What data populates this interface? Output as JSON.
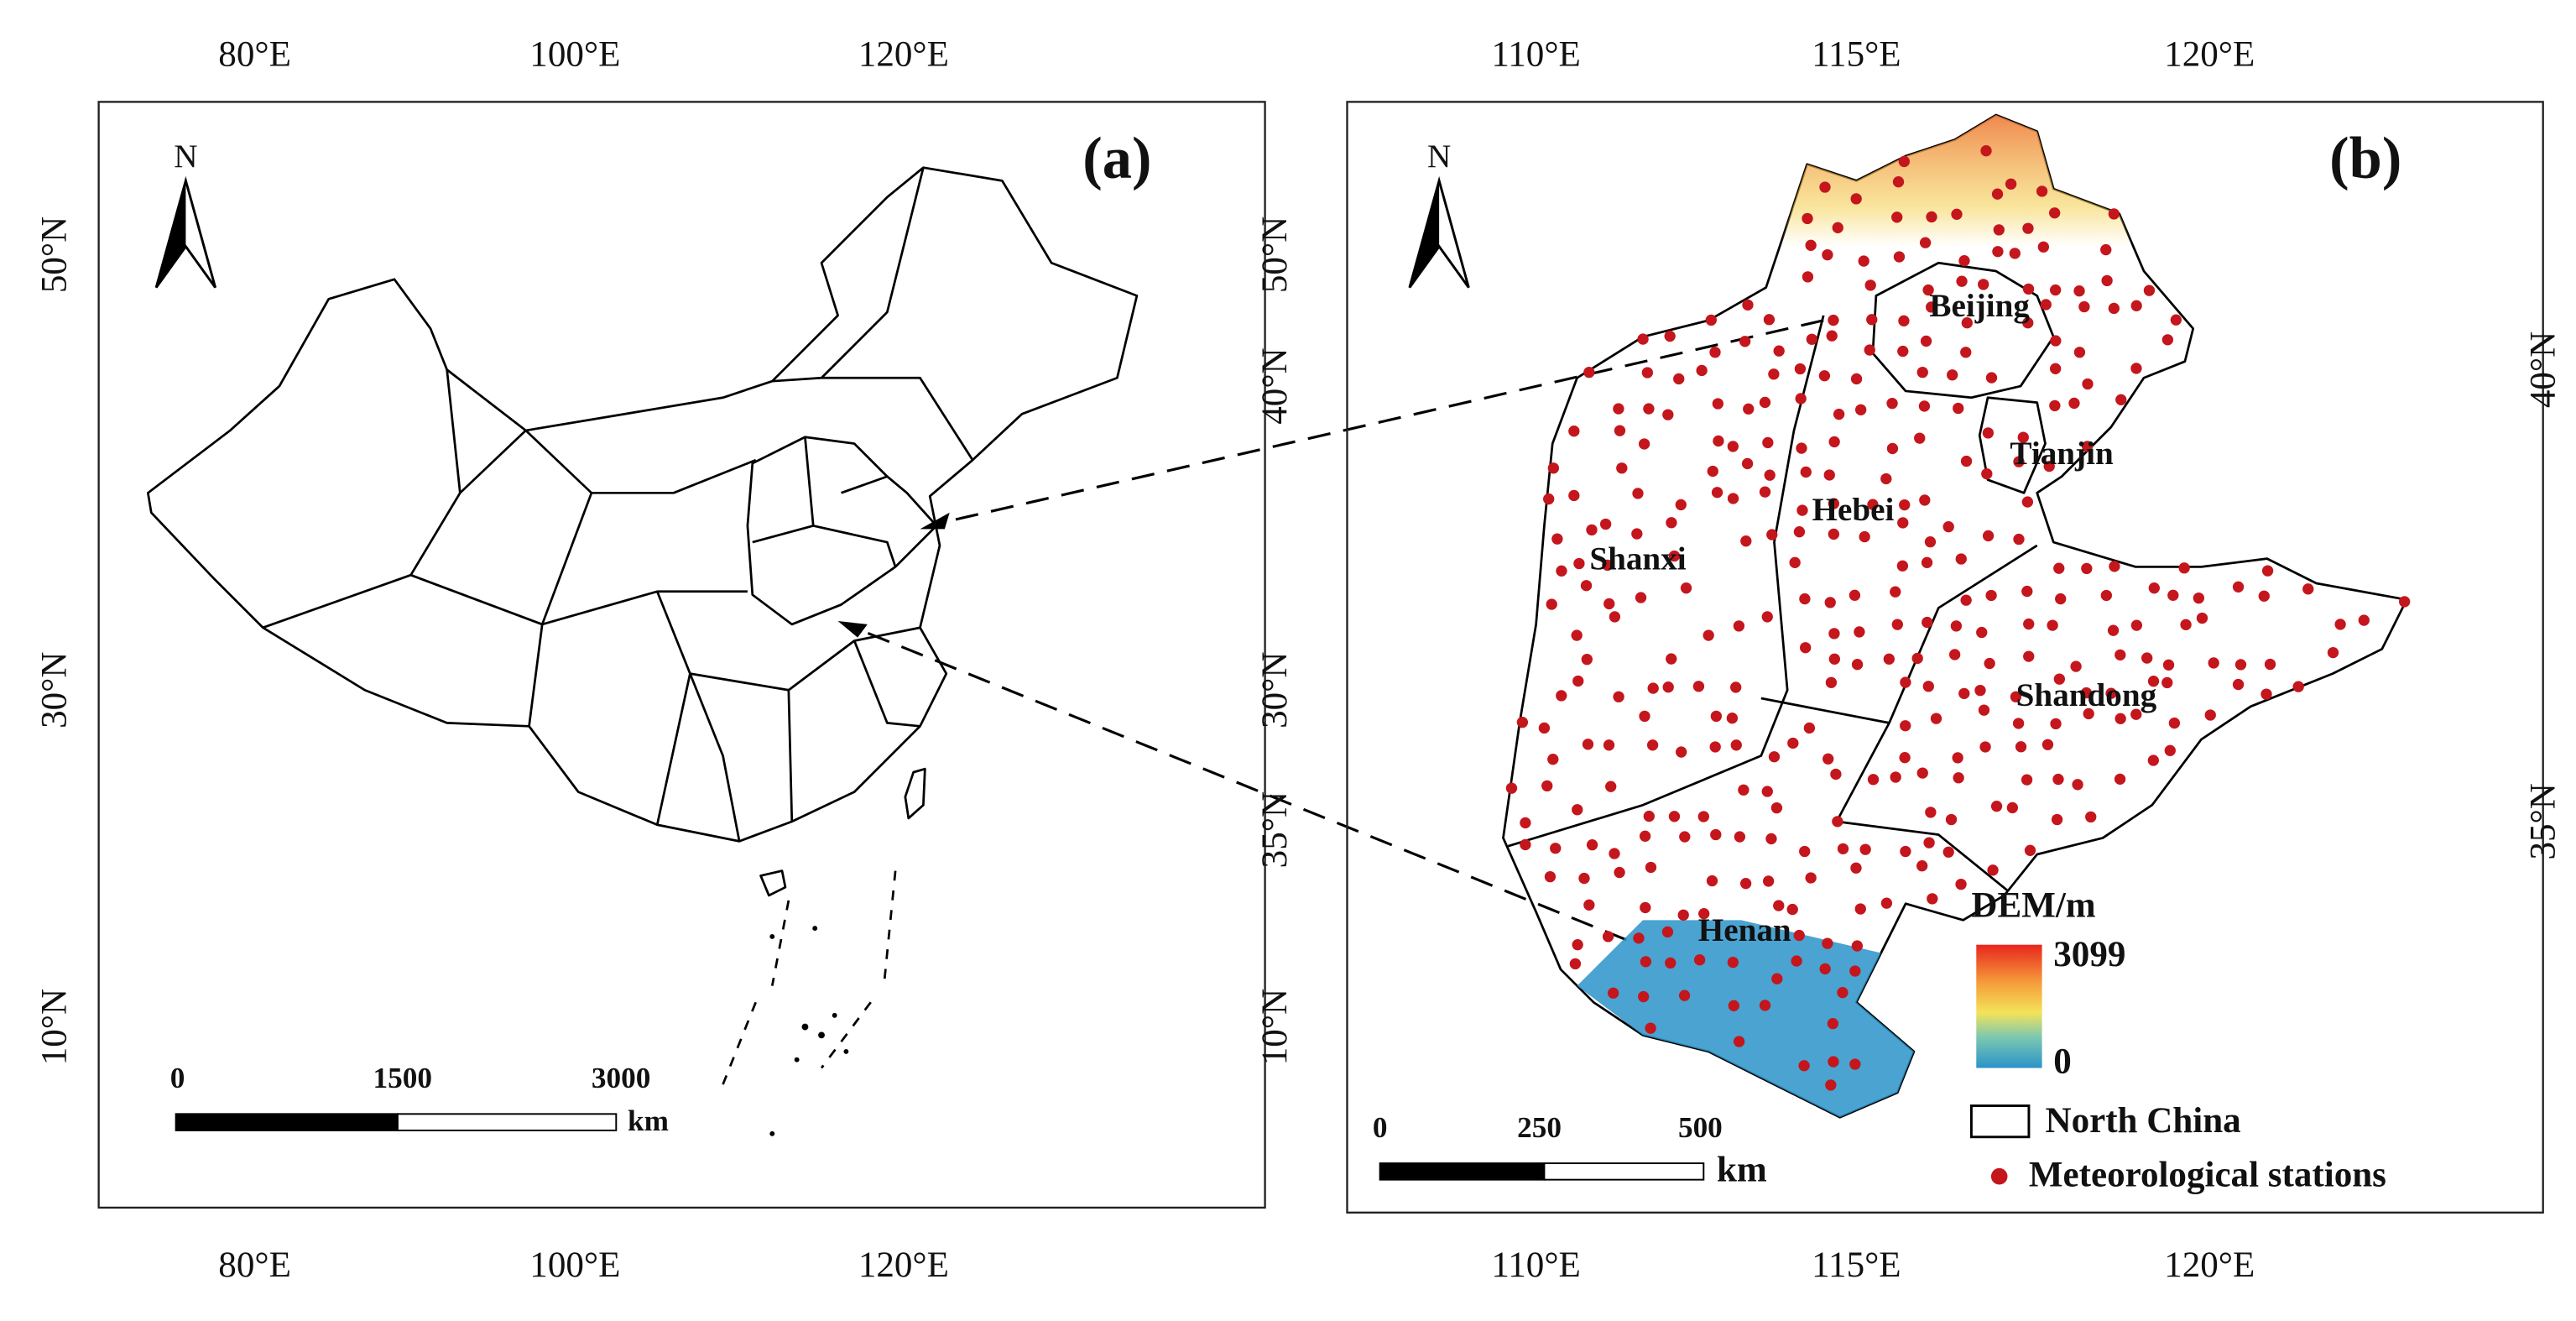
{
  "panel_a": {
    "label": "(a)",
    "north": "N",
    "x_ticks_top": [
      "80°E",
      "100°E",
      "120°E"
    ],
    "x_ticks_bottom": [
      "80°E",
      "100°E",
      "120°E"
    ],
    "y_ticks_left": [
      "50°N",
      "30°N",
      "10°N"
    ],
    "y_ticks_right": [
      "50°N",
      "30°N",
      "10°N"
    ],
    "scale_bar": {
      "labels": [
        "0",
        "1500",
        "3000"
      ],
      "unit": "km"
    }
  },
  "panel_b": {
    "label": "(b)",
    "north": "N",
    "x_ticks_top": [
      "110°E",
      "115°E",
      "120°E"
    ],
    "x_ticks_bottom": [
      "110°E",
      "115°E",
      "120°E"
    ],
    "y_ticks_left": [
      "40°N",
      "35°N"
    ],
    "y_ticks_right": [
      "40°N",
      "35°N"
    ],
    "regions": [
      "Beijing",
      "Tianjin",
      "Hebei",
      "Shanxi",
      "Shandong",
      "Henan"
    ],
    "scale_bar": {
      "labels": [
        "0",
        "250",
        "500"
      ],
      "unit": "km"
    },
    "legend": {
      "dem_title": "DEM/m",
      "dem_max": "3099",
      "dem_min": "0",
      "boundary": "North China",
      "stations": "Meteorological stations"
    }
  }
}
